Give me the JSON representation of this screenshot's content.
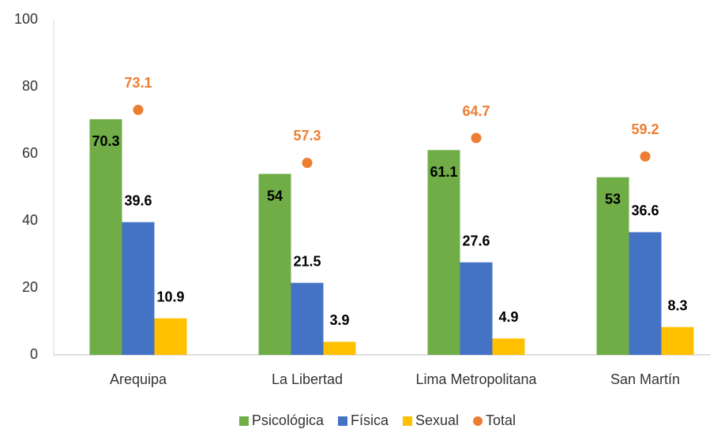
{
  "chart_data": {
    "type": "bar",
    "categories": [
      "Arequipa",
      "La Libertad",
      "Lima Metropolitana",
      "San Martín"
    ],
    "series": [
      {
        "name": "Psicológica",
        "color": "#70ad47",
        "values": [
          70.3,
          54,
          61.1,
          53
        ]
      },
      {
        "name": "Física",
        "color": "#4472c4",
        "values": [
          39.6,
          21.5,
          27.6,
          36.6
        ]
      },
      {
        "name": "Sexual",
        "color": "#ffc000",
        "values": [
          10.9,
          3.9,
          4.9,
          8.3
        ]
      },
      {
        "name": "Total",
        "color": "#ed7d31",
        "type": "scatter",
        "values": [
          73.1,
          57.3,
          64.7,
          59.2
        ]
      }
    ],
    "ylim": [
      0,
      100
    ],
    "yticks": [
      0,
      20,
      40,
      60,
      80,
      100
    ],
    "legend": "bottom"
  }
}
